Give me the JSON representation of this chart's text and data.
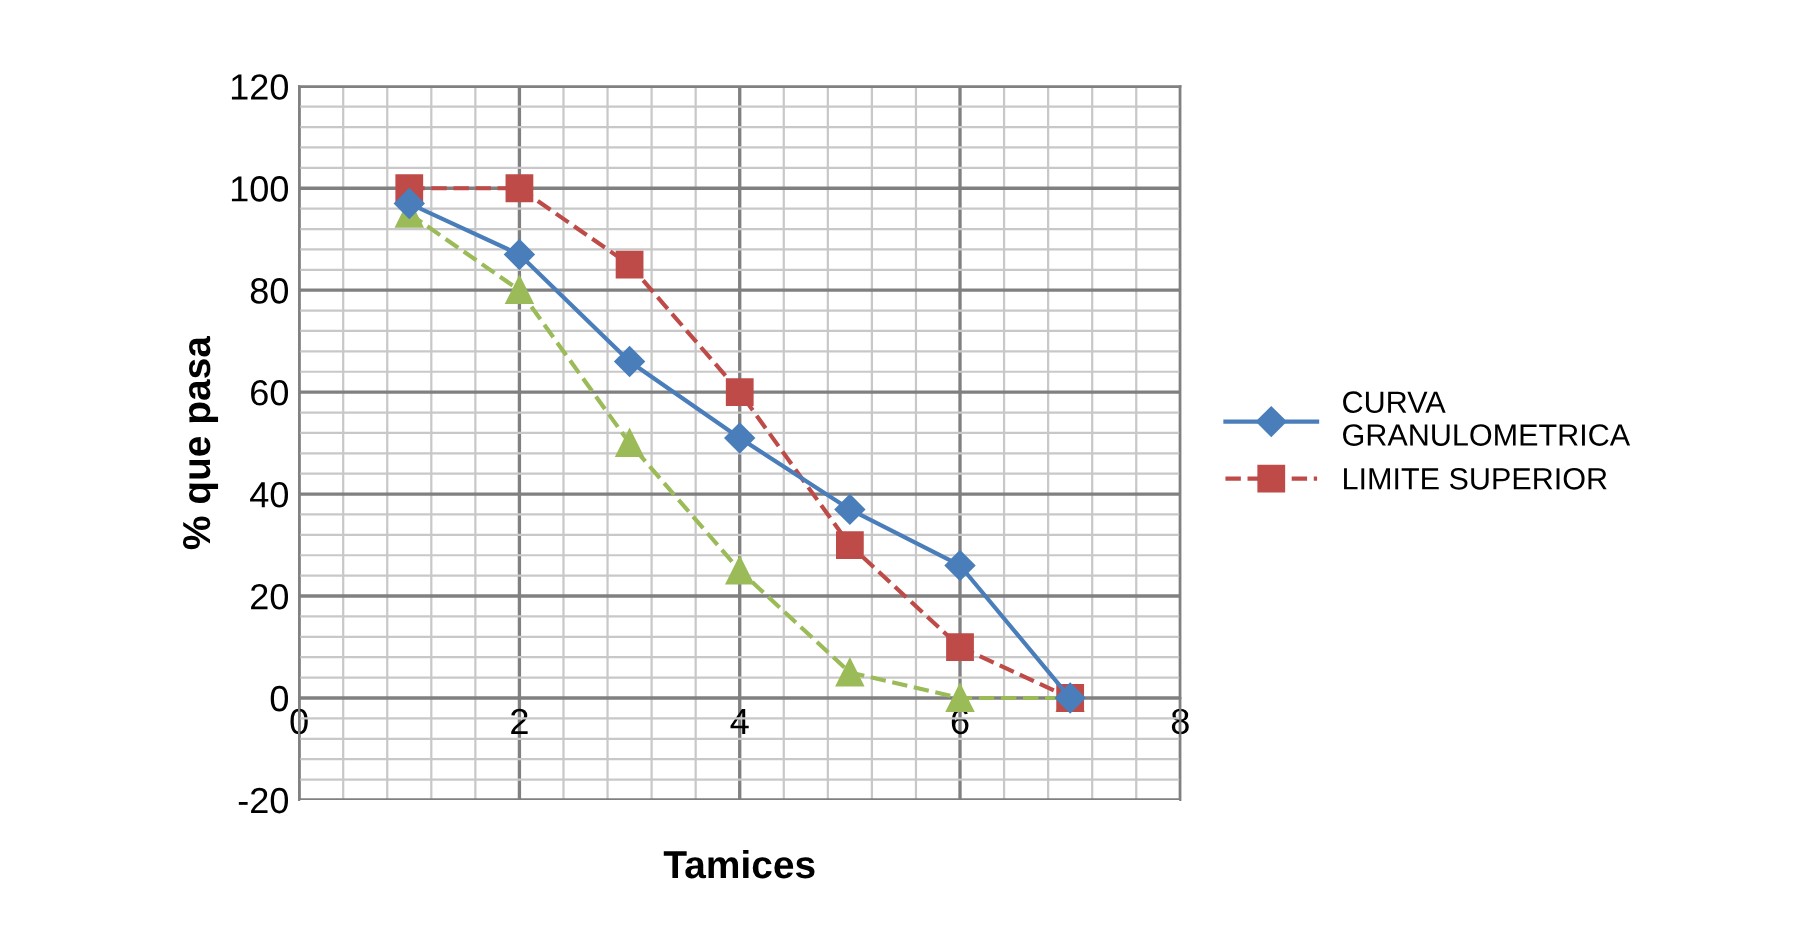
{
  "chart_data": {
    "type": "line",
    "xlabel": "Tamices",
    "ylabel": "% que pasa",
    "x": [
      1,
      2,
      3,
      4,
      5,
      6,
      7
    ],
    "series": [
      {
        "name": "CURVA GRANULOMETRICA",
        "color": "#4a7ebb",
        "marker": "diamond",
        "line_style": "solid",
        "values": [
          97,
          87,
          66,
          51,
          37,
          26,
          0
        ]
      },
      {
        "name": "LIMITE SUPERIOR",
        "color": "#be4b48",
        "marker": "square",
        "line_style": "dashed",
        "values": [
          100,
          100,
          85,
          60,
          30,
          10,
          0
        ]
      },
      {
        "color": "#9bbb59",
        "marker": "triangle",
        "line_style": "dashed",
        "values": [
          95,
          80,
          50,
          25,
          5,
          0,
          0
        ]
      }
    ],
    "xlim": [
      0,
      8
    ],
    "xticks": [
      0,
      2,
      4,
      6,
      8
    ],
    "ylim": [
      -20,
      120
    ],
    "yticks": [
      -20,
      0,
      20,
      40,
      60,
      80,
      100,
      120
    ],
    "grid": true,
    "legend": "right"
  }
}
